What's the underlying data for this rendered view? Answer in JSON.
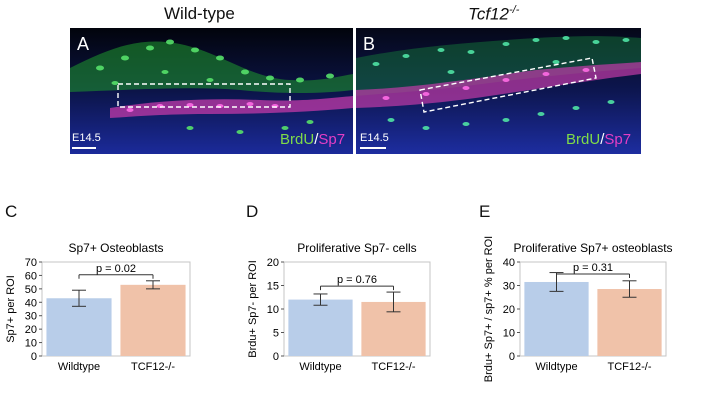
{
  "figure": {
    "col_wildtype": "Wild-type",
    "col_mutant_base": "Tcf12",
    "col_mutant_sup": "-/-",
    "panel_a": "A",
    "panel_b": "B",
    "stage_a": "E14.5",
    "stage_b": "E14.5",
    "stain_green": "BrdU",
    "stain_sep": "/",
    "stain_magenta": "Sp7",
    "panel_c": "C",
    "panel_d": "D",
    "panel_e": "E"
  },
  "colors": {
    "wildtype_bar": "#b8cde9",
    "mutant_bar": "#f0c2a9",
    "brdu": "#3fd05a",
    "sp7": "#e43ec5",
    "dapi": "#1b2a9a"
  },
  "chart_data": [
    {
      "type": "bar",
      "title": "Sp7+ Osteoblasts",
      "ylabel": "Sp7+ per ROI",
      "xlabel": "",
      "categories": [
        "Wildtype",
        "TCF12-/-"
      ],
      "values": [
        43,
        53
      ],
      "errors": [
        6,
        3
      ],
      "ylim": [
        0,
        70
      ],
      "yticks": [
        0,
        10,
        20,
        30,
        40,
        50,
        60,
        70
      ],
      "annotation": "p = 0.02",
      "grid": false
    },
    {
      "type": "bar",
      "title": "Proliferative Sp7- cells",
      "ylabel": "Brdu+ Sp7- per ROI",
      "xlabel": "",
      "categories": [
        "Wildtype",
        "TCF12-/-"
      ],
      "values": [
        12,
        11.5
      ],
      "errors": [
        1.2,
        2.1
      ],
      "ylim": [
        0,
        20
      ],
      "yticks": [
        0,
        5,
        10,
        15,
        20
      ],
      "annotation": "p = 0.76",
      "grid": false
    },
    {
      "type": "bar",
      "title": "Proliferative Sp7+ osteoblasts",
      "ylabel": "Brdu+ Sp7+ / sp7+ % per ROI",
      "xlabel": "",
      "categories": [
        "Wildtype",
        "TCF12-/-"
      ],
      "values": [
        31.5,
        28.5
      ],
      "errors": [
        4,
        3.5
      ],
      "ylim": [
        0,
        40
      ],
      "yticks": [
        0,
        10,
        20,
        30,
        40
      ],
      "annotation": "p = 0.31",
      "grid": false
    }
  ]
}
